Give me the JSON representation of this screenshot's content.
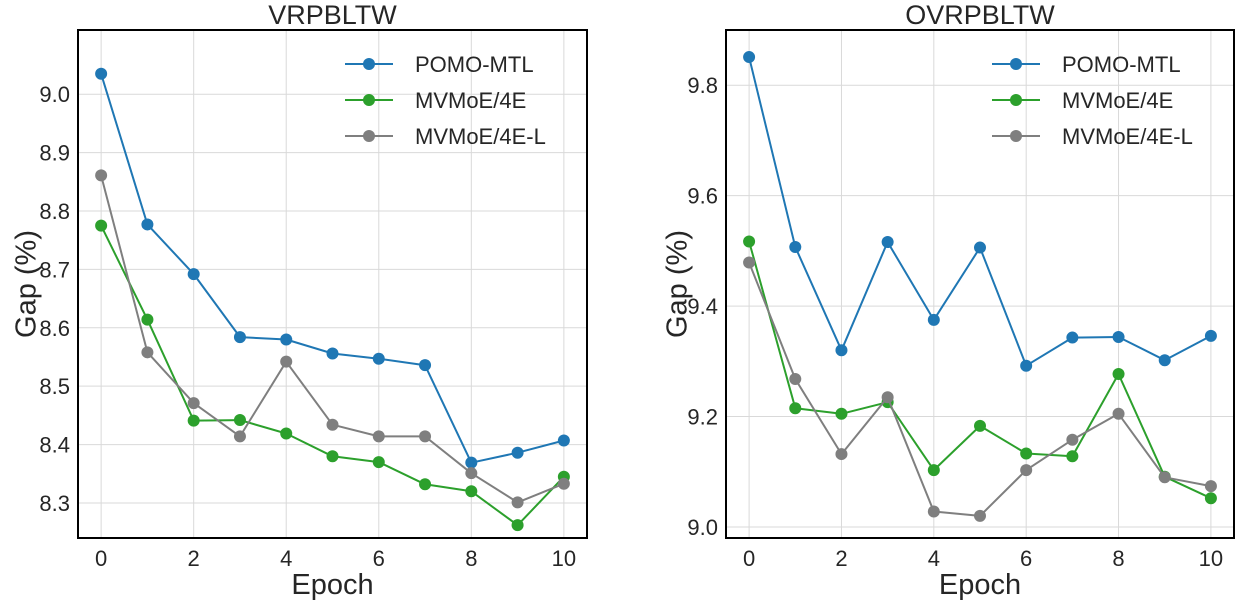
{
  "chart_data": [
    {
      "type": "line",
      "title": "VRPBLTW",
      "xlabel": "Epoch",
      "ylabel": "Gap (%)",
      "x": [
        0,
        1,
        2,
        3,
        4,
        5,
        6,
        7,
        8,
        9,
        10
      ],
      "xlim": [
        -0.5,
        10.5
      ],
      "ylim": [
        8.24,
        9.11
      ],
      "xticks": [
        0,
        2,
        4,
        6,
        8,
        10
      ],
      "xtick_labels": [
        "0",
        "2",
        "4",
        "6",
        "8",
        "10"
      ],
      "yticks": [
        8.3,
        8.4,
        8.5,
        8.6,
        8.7,
        8.8,
        8.9,
        9.0
      ],
      "ytick_labels": [
        "8.3",
        "8.4",
        "8.5",
        "8.6",
        "8.7",
        "8.8",
        "8.9",
        "9.0"
      ],
      "grid": true,
      "legend_position": "top-right",
      "series": [
        {
          "name": "POMO-MTL",
          "color": "#1f77b4",
          "values": [
            9.035,
            8.777,
            8.692,
            8.584,
            8.58,
            8.556,
            8.547,
            8.536,
            8.369,
            8.386,
            8.407
          ]
        },
        {
          "name": "MVMoE/4E",
          "color": "#2ca02c",
          "values": [
            8.775,
            8.614,
            8.441,
            8.442,
            8.419,
            8.38,
            8.37,
            8.332,
            8.32,
            8.262,
            8.345
          ]
        },
        {
          "name": "MVMoE/4E-L",
          "color": "#7f7f7f",
          "values": [
            8.861,
            8.558,
            8.471,
            8.414,
            8.542,
            8.434,
            8.414,
            8.414,
            8.351,
            8.301,
            8.333
          ]
        }
      ]
    },
    {
      "type": "line",
      "title": "OVRPBLTW",
      "xlabel": "Epoch",
      "ylabel": "Gap (%)",
      "x": [
        0,
        1,
        2,
        3,
        4,
        5,
        6,
        7,
        8,
        9,
        10
      ],
      "xlim": [
        -0.5,
        10.5
      ],
      "ylim": [
        8.98,
        9.9
      ],
      "xticks": [
        0,
        2,
        4,
        6,
        8,
        10
      ],
      "xtick_labels": [
        "0",
        "2",
        "4",
        "6",
        "8",
        "10"
      ],
      "yticks": [
        9.0,
        9.2,
        9.4,
        9.6,
        9.8
      ],
      "ytick_labels": [
        "9.0",
        "9.2",
        "9.4",
        "9.6",
        "9.8"
      ],
      "grid": true,
      "legend_position": "top-right",
      "series": [
        {
          "name": "POMO-MTL",
          "color": "#1f77b4",
          "values": [
            9.851,
            9.507,
            9.32,
            9.516,
            9.375,
            9.506,
            9.292,
            9.343,
            9.344,
            9.302,
            9.346
          ]
        },
        {
          "name": "MVMoE/4E",
          "color": "#2ca02c",
          "values": [
            9.517,
            9.215,
            9.205,
            9.226,
            9.103,
            9.183,
            9.133,
            9.128,
            9.277,
            9.091,
            9.052
          ]
        },
        {
          "name": "MVMoE/4E-L",
          "color": "#7f7f7f",
          "values": [
            9.479,
            9.268,
            9.132,
            9.235,
            9.028,
            9.02,
            9.103,
            9.158,
            9.205,
            9.09,
            9.074
          ]
        }
      ]
    }
  ]
}
